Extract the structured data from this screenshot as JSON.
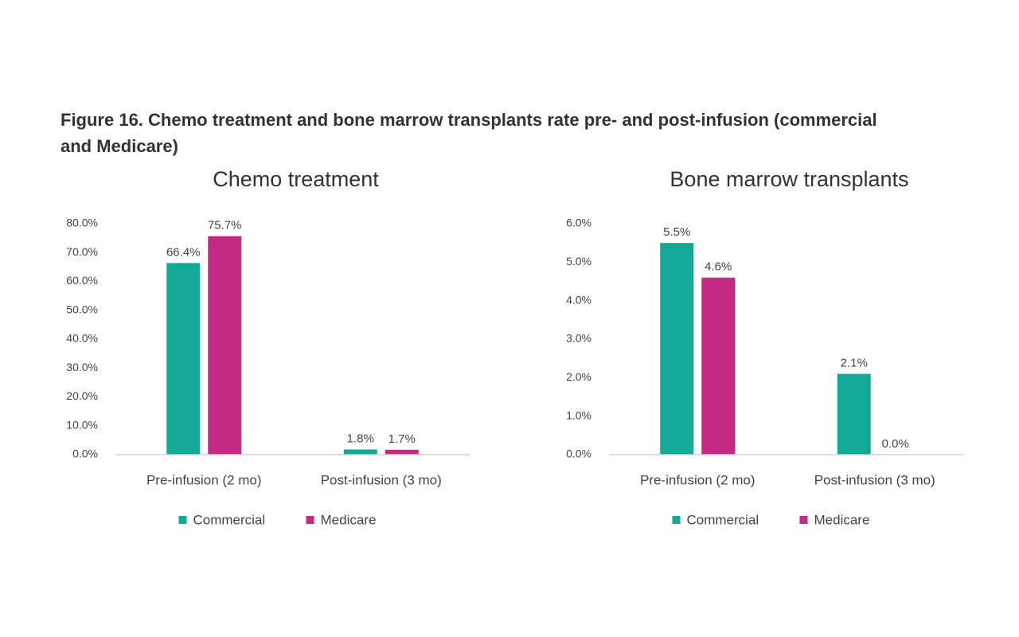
{
  "title": "Figure 16. Chemo treatment and bone marrow transplants rate pre- and post-infusion (commercial and Medicare)",
  "chart_data": [
    {
      "type": "bar",
      "title": "Chemo treatment",
      "categories": [
        "Pre-infusion (2 mo)",
        "Post-infusion (3 mo)"
      ],
      "series": [
        {
          "name": "Commercial",
          "color": "#14a896",
          "values": [
            66.4,
            1.8
          ],
          "value_labels": [
            "66.4%",
            "1.8%"
          ]
        },
        {
          "name": "Medicare",
          "color": "#c42a84",
          "values": [
            75.7,
            1.7
          ],
          "value_labels": [
            "75.7%",
            "1.7%"
          ]
        }
      ],
      "ylim": [
        0,
        80
      ],
      "yticks": [
        {
          "value": 0,
          "label": "0.0%"
        },
        {
          "value": 10,
          "label": "10.0%"
        },
        {
          "value": 20,
          "label": "20.0%"
        },
        {
          "value": 30,
          "label": "30.0%"
        },
        {
          "value": 40,
          "label": "40.0%"
        },
        {
          "value": 50,
          "label": "50.0%"
        },
        {
          "value": 60,
          "label": "60.0%"
        },
        {
          "value": 70,
          "label": "70.0%"
        },
        {
          "value": 80,
          "label": "80.0%"
        }
      ],
      "grid": false,
      "legend": "bottom"
    },
    {
      "type": "bar",
      "title": "Bone marrow transplants",
      "categories": [
        "Pre-infusion (2 mo)",
        "Post-infusion (3 mo)"
      ],
      "series": [
        {
          "name": "Commercial",
          "color": "#14a896",
          "values": [
            5.5,
            2.1
          ],
          "value_labels": [
            "5.5%",
            "2.1%"
          ]
        },
        {
          "name": "Medicare",
          "color": "#c42a84",
          "values": [
            4.6,
            0.0
          ],
          "value_labels": [
            "4.6%",
            "0.0%"
          ]
        }
      ],
      "ylim": [
        0,
        6
      ],
      "yticks": [
        {
          "value": 0,
          "label": "0.0%"
        },
        {
          "value": 1,
          "label": "1.0%"
        },
        {
          "value": 2,
          "label": "2.0%"
        },
        {
          "value": 3,
          "label": "3.0%"
        },
        {
          "value": 4,
          "label": "4.0%"
        },
        {
          "value": 5,
          "label": "5.0%"
        },
        {
          "value": 6,
          "label": "6.0%"
        }
      ],
      "grid": false,
      "legend": "bottom"
    }
  ]
}
